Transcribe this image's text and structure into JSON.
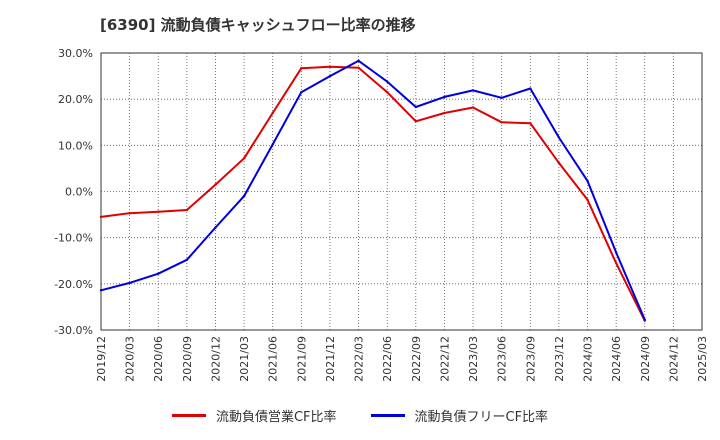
{
  "chart_data": {
    "type": "line",
    "title": "[6390]  流動負債キャッシュフロー比率の推移",
    "x": [
      "2019/12",
      "2020/03",
      "2020/06",
      "2020/09",
      "2020/12",
      "2021/03",
      "2021/06",
      "2021/09",
      "2021/12",
      "2022/03",
      "2022/06",
      "2022/09",
      "2022/12",
      "2023/03",
      "2023/06",
      "2023/09",
      "2023/12",
      "2024/03",
      "2024/06",
      "2024/09",
      "2024/12",
      "2025/03"
    ],
    "ylim": [
      -30,
      30
    ],
    "yticks": [
      "30.0%",
      "20.0%",
      "10.0%",
      "0.0%",
      "-10.0%",
      "-20.0%",
      "-30.0%"
    ],
    "grid": true,
    "legend_position": "bottom",
    "series": [
      {
        "name": "流動負債営業CF比率",
        "color": "#e00000",
        "values": [
          -5.5,
          -4.7,
          -4.4,
          -4.0,
          1.5,
          7.2,
          17.0,
          26.7,
          27.0,
          26.8,
          21.5,
          15.2,
          17.0,
          18.2,
          15.0,
          14.8,
          6.2,
          -1.8,
          -15.5,
          -28.0,
          null,
          null
        ]
      },
      {
        "name": "流動負債フリーCF比率",
        "color": "#0000dd",
        "values": [
          -21.4,
          -19.8,
          -17.8,
          -14.8,
          -7.8,
          -1.0,
          10.2,
          21.5,
          25.0,
          28.3,
          23.8,
          18.3,
          20.5,
          21.9,
          20.3,
          22.3,
          11.7,
          2.3,
          -13.2,
          -27.8,
          null,
          null
        ]
      }
    ]
  }
}
